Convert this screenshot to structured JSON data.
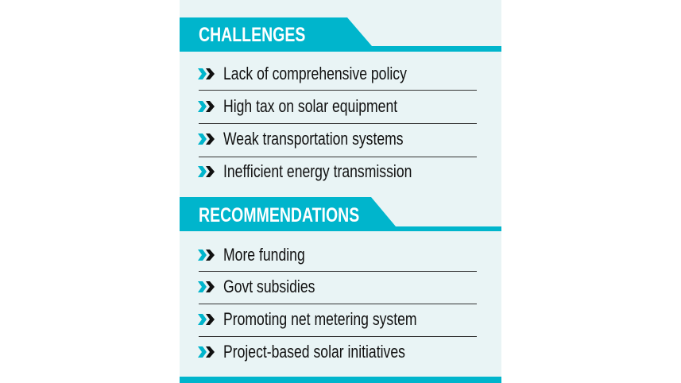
{
  "colors": {
    "accent": "#00b5cc",
    "background": "#e9f4f5",
    "text": "#111111"
  },
  "challenges": {
    "title": "CHALLENGES",
    "items": [
      {
        "label": "Lack of comprehensive policy",
        "icon": "double-chevron-right-icon"
      },
      {
        "label": "High tax on solar equipment",
        "icon": "double-chevron-right-icon"
      },
      {
        "label": "Weak transportation systems",
        "icon": "double-chevron-right-icon"
      },
      {
        "label": "Inefficient energy transmission",
        "icon": "double-chevron-right-icon"
      }
    ]
  },
  "recommendations": {
    "title": "RECOMMENDATIONS",
    "items": [
      {
        "label": "More funding",
        "icon": "double-chevron-right-icon"
      },
      {
        "label": "Govt subsidies",
        "icon": "double-chevron-right-icon"
      },
      {
        "label": "Promoting net metering system",
        "icon": "double-chevron-right-icon"
      },
      {
        "label": "Project-based solar initiatives",
        "icon": "double-chevron-right-icon"
      }
    ]
  }
}
